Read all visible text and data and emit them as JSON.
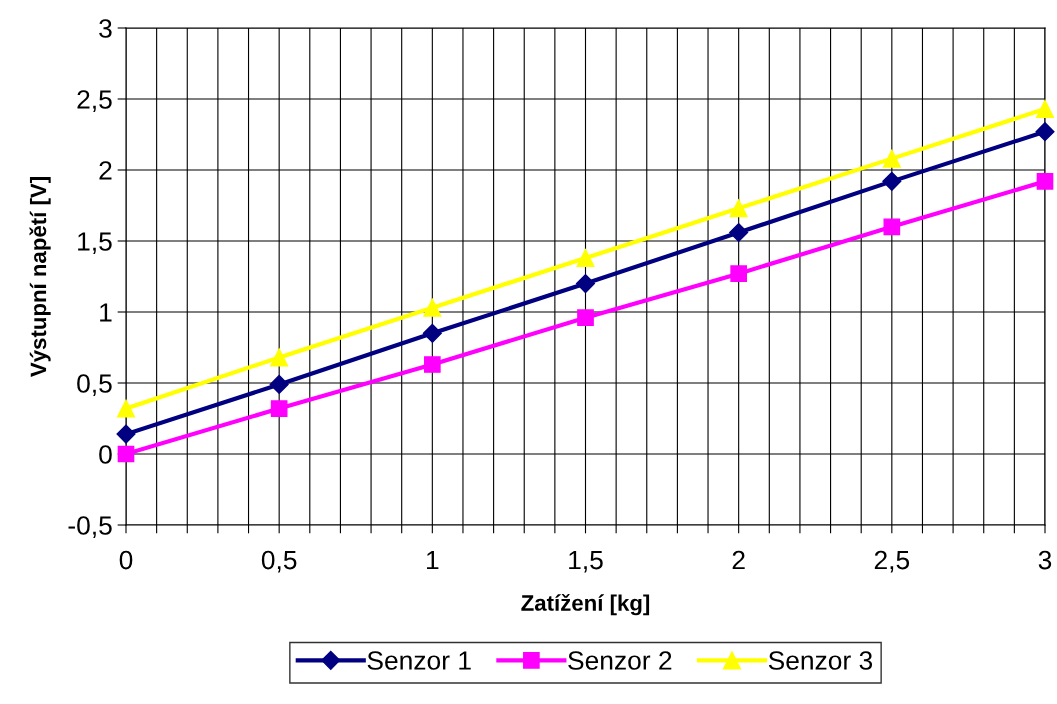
{
  "chart_data": {
    "type": "line",
    "xlabel": "Zatížení [kg]",
    "ylabel": "Výstupní napětí [V]",
    "x": [
      0,
      0.5,
      1,
      1.5,
      2,
      2.5,
      3
    ],
    "series": [
      {
        "name": "Senzor 1",
        "color": "#000080",
        "marker": "diamond",
        "values": [
          0.14,
          0.49,
          0.85,
          1.2,
          1.56,
          1.92,
          2.27
        ]
      },
      {
        "name": "Senzor 2",
        "color": "#ff00ff",
        "marker": "square",
        "values": [
          0,
          0.32,
          0.63,
          0.96,
          1.27,
          1.6,
          1.92
        ]
      },
      {
        "name": "Senzor 3",
        "color": "#ffff00",
        "marker": "triangle",
        "values": [
          0.32,
          0.68,
          1.03,
          1.38,
          1.73,
          2.08,
          2.43
        ]
      }
    ],
    "xlim": [
      0,
      3
    ],
    "xticks": [
      {
        "value": 0,
        "label": "0"
      },
      {
        "value": 0.1,
        "label": null
      },
      {
        "value": 0.2,
        "label": null
      },
      {
        "value": 0.3,
        "label": null
      },
      {
        "value": 0.4,
        "label": null
      },
      {
        "value": 0.5,
        "label": "0,5"
      },
      {
        "value": 0.6,
        "label": null
      },
      {
        "value": 0.7,
        "label": null
      },
      {
        "value": 0.8,
        "label": null
      },
      {
        "value": 0.9,
        "label": null
      },
      {
        "value": 1,
        "label": "1"
      },
      {
        "value": 1.1,
        "label": null
      },
      {
        "value": 1.2,
        "label": null
      },
      {
        "value": 1.3,
        "label": null
      },
      {
        "value": 1.4,
        "label": null
      },
      {
        "value": 1.5,
        "label": "1,5"
      },
      {
        "value": 1.6,
        "label": null
      },
      {
        "value": 1.7,
        "label": null
      },
      {
        "value": 1.8,
        "label": null
      },
      {
        "value": 1.9,
        "label": null
      },
      {
        "value": 2,
        "label": "2"
      },
      {
        "value": 2.1,
        "label": null
      },
      {
        "value": 2.2,
        "label": null
      },
      {
        "value": 2.3,
        "label": null
      },
      {
        "value": 2.4,
        "label": null
      },
      {
        "value": 2.5,
        "label": "2,5"
      },
      {
        "value": 2.6,
        "label": null
      },
      {
        "value": 2.7,
        "label": null
      },
      {
        "value": 2.8,
        "label": null
      },
      {
        "value": 2.9,
        "label": null
      },
      {
        "value": 3,
        "label": "3"
      }
    ],
    "ylim": [
      -0.5,
      3
    ],
    "yticks": [
      {
        "value": -0.5,
        "label": "-0,5"
      },
      {
        "value": 0,
        "label": "0"
      },
      {
        "value": 0.5,
        "label": "0,5"
      },
      {
        "value": 1,
        "label": "1"
      },
      {
        "value": 1.5,
        "label": "1,5"
      },
      {
        "value": 2,
        "label": "2"
      },
      {
        "value": 2.5,
        "label": "2,5"
      },
      {
        "value": 3,
        "label": "3"
      }
    ],
    "grid": true,
    "legend": "bottom",
    "line_style": "solid"
  }
}
